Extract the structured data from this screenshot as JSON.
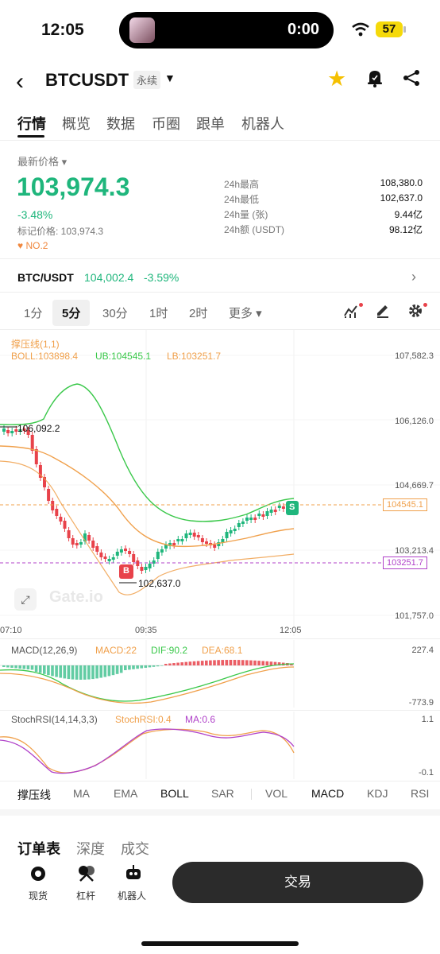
{
  "status": {
    "time": "12:05",
    "island_time": "0:00",
    "battery": "57"
  },
  "header": {
    "title": "BTCUSDT",
    "badge": "永续"
  },
  "tabs": [
    "行情",
    "概览",
    "数据",
    "币圈",
    "跟单",
    "机器人"
  ],
  "price": {
    "latest_label": "最新价格",
    "value": "103,974.3",
    "change": "-3.48%",
    "mark": "标记价格: 103,974.3",
    "rank": "NO.2"
  },
  "stats": [
    {
      "label": "24h最高",
      "value": "108,380.0"
    },
    {
      "label": "24h最低",
      "value": "102,637.0"
    },
    {
      "label": "24h量 (张)",
      "value": "9.44亿"
    },
    {
      "label": "24h额 (USDT)",
      "value": "98.12亿"
    }
  ],
  "spot": {
    "name": "BTC/USDT",
    "price": "104,002.4",
    "change": "-3.59%"
  },
  "intervals": [
    "1分",
    "5分",
    "30分",
    "1时",
    "2时",
    "更多"
  ],
  "chart": {
    "support_label": "撑压线(1,1)",
    "boll": "BOLL:103898.4",
    "ub": "UB:104545.1",
    "lb": "LB:103251.7",
    "y_ticks": [
      "107,582.3",
      "106,126.0",
      "104,669.7",
      "103,213.4",
      "101,757.0"
    ],
    "x_ticks": [
      "07:10",
      "09:35",
      "12:05"
    ],
    "high_label": "106,092.2",
    "low_label": "102,637.0",
    "ub_tag": "104545.1",
    "lb_tag": "103251.7",
    "buy_marker": "B",
    "sell_marker": "S",
    "watermark": "Gate.io",
    "macd_label": "MACD(12,26,9)",
    "macd_val": "MACD:22",
    "dif_val": "DIF:90.2",
    "dea_val": "DEA:68.1",
    "macd_ticks": [
      "227.4",
      "-773.9"
    ],
    "stoch_label": "StochRSI(14,14,3,3)",
    "stoch_val": "StochRSI:0.4",
    "ma_val": "MA:0.6",
    "stoch_ticks": [
      "1.1",
      "-0.1"
    ]
  },
  "indicators": [
    "撑压线",
    "MA",
    "EMA",
    "BOLL",
    "SAR",
    "VOL",
    "MACD",
    "KDJ",
    "RSI"
  ],
  "book_tabs": [
    "订单表",
    "深度",
    "成交"
  ],
  "bottom_nav": [
    "现货",
    "杠杆",
    "机器人"
  ],
  "trade_button": "交易",
  "colors": {
    "up": "#1fb67c",
    "down": "#e8424a",
    "boll": "#f0a04b",
    "ub": "#3ac84a",
    "lb": "#b041c9"
  }
}
